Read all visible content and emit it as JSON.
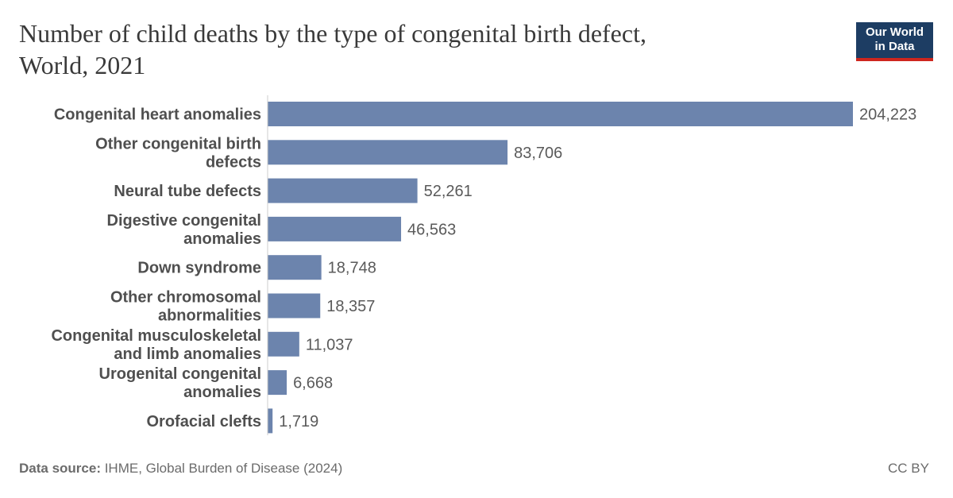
{
  "header": {
    "title_line1": "Number of child deaths by the type of congenital birth defect,",
    "title_line2": "World, 2021",
    "logo_line1": "Our World",
    "logo_line2": "in Data"
  },
  "footer": {
    "source_label": "Data source:",
    "source_text": " IHME, Global Burden of Disease (2024)",
    "license": "CC BY"
  },
  "colors": {
    "bar": "#6c84ad",
    "axis": "#cccccc"
  },
  "chart_data": {
    "type": "bar",
    "orientation": "horizontal",
    "categories": [
      [
        "Congenital heart anomalies"
      ],
      [
        "Other congenital birth",
        "defects"
      ],
      [
        "Neural tube defects"
      ],
      [
        "Digestive congenital",
        "anomalies"
      ],
      [
        "Down syndrome"
      ],
      [
        "Other chromosomal",
        "abnormalities"
      ],
      [
        "Congenital musculoskeletal",
        "and limb anomalies"
      ],
      [
        "Urogenital congenital",
        "anomalies"
      ],
      [
        "Orofacial clefts"
      ]
    ],
    "values": [
      204223,
      83706,
      52261,
      46563,
      18748,
      18357,
      11037,
      6668,
      1719
    ],
    "value_labels": [
      "204,223",
      "83,706",
      "52,261",
      "46,563",
      "18,748",
      "18,357",
      "11,037",
      "6,668",
      "1,719"
    ],
    "title": "Number of child deaths by the type of congenital birth defect, World, 2021",
    "xlabel": "",
    "ylabel": "",
    "xlim": [
      0,
      204223
    ],
    "grid": false,
    "legend": "none"
  }
}
